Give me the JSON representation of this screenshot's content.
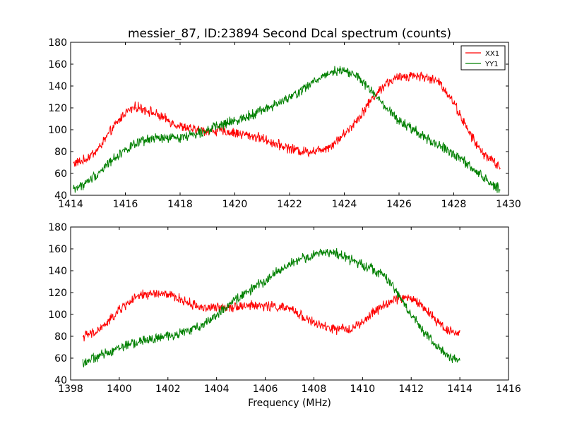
{
  "title": "messier_87, ID:23894 Second Dcal spectrum (counts)",
  "chart_data": [
    {
      "type": "line",
      "title": "messier_87, ID:23894 Second Dcal spectrum (counts)",
      "xlabel": "",
      "ylabel": "",
      "xlim": [
        1414,
        1430
      ],
      "ylim": [
        40,
        180
      ],
      "xticks": [
        "1414",
        "1416",
        "1418",
        "1420",
        "1422",
        "1424",
        "1426",
        "1428",
        "1430"
      ],
      "yticks": [
        "40",
        "60",
        "80",
        "100",
        "120",
        "140",
        "160",
        "180"
      ],
      "legend": {
        "placement": "top-right",
        "entries": [
          "XX1",
          "YY1"
        ]
      },
      "series": [
        {
          "name": "XX1",
          "color": "#ff0000",
          "x": [
            1414.1,
            1414.5,
            1415.0,
            1415.5,
            1416.0,
            1416.4,
            1416.8,
            1417.2,
            1417.6,
            1418.0,
            1418.5,
            1419.0,
            1419.5,
            1420.0,
            1420.5,
            1421.0,
            1421.5,
            1422.0,
            1422.5,
            1423.0,
            1423.5,
            1424.0,
            1424.5,
            1425.0,
            1425.5,
            1426.0,
            1426.5,
            1427.0,
            1427.5,
            1428.0,
            1428.5,
            1429.0,
            1429.5,
            1429.7
          ],
          "values": [
            69,
            72,
            82,
            100,
            116,
            121,
            118,
            113,
            108,
            103,
            100,
            99,
            99,
            97,
            95,
            92,
            87,
            83,
            80,
            81,
            85,
            96,
            110,
            128,
            142,
            148,
            150,
            148,
            143,
            125,
            100,
            80,
            70,
            65
          ]
        },
        {
          "name": "YY1",
          "color": "#008000",
          "x": [
            1414.1,
            1414.5,
            1415.0,
            1415.5,
            1416.0,
            1416.5,
            1417.0,
            1417.5,
            1418.0,
            1418.5,
            1419.0,
            1419.5,
            1420.0,
            1420.5,
            1421.0,
            1421.5,
            1422.0,
            1422.5,
            1423.0,
            1423.5,
            1424.0,
            1424.5,
            1425.0,
            1425.5,
            1426.0,
            1426.5,
            1427.0,
            1427.5,
            1428.0,
            1428.5,
            1429.0,
            1429.5,
            1429.7
          ],
          "values": [
            46,
            50,
            60,
            72,
            82,
            88,
            92,
            92,
            93,
            96,
            100,
            104,
            108,
            113,
            118,
            123,
            129,
            137,
            146,
            153,
            155,
            148,
            135,
            120,
            108,
            100,
            92,
            85,
            78,
            68,
            58,
            48,
            46
          ]
        }
      ]
    },
    {
      "type": "line",
      "title": "",
      "xlabel": "Frequency (MHz)",
      "ylabel": "",
      "xlim": [
        1398,
        1416
      ],
      "ylim": [
        40,
        180
      ],
      "xticks": [
        "1398",
        "1400",
        "1402",
        "1404",
        "1406",
        "1408",
        "1410",
        "1412",
        "1414",
        "1416"
      ],
      "yticks": [
        "40",
        "60",
        "80",
        "100",
        "120",
        "140",
        "160",
        "180"
      ],
      "series": [
        {
          "name": "XX1",
          "color": "#ff0000",
          "x": [
            1398.5,
            1399.0,
            1399.5,
            1400.0,
            1400.5,
            1401.0,
            1401.5,
            1402.0,
            1402.5,
            1403.0,
            1403.5,
            1404.0,
            1404.5,
            1405.0,
            1405.5,
            1406.0,
            1406.5,
            1407.0,
            1407.5,
            1408.0,
            1408.5,
            1409.0,
            1409.5,
            1410.0,
            1410.5,
            1411.0,
            1411.5,
            1412.0,
            1412.5,
            1413.0,
            1413.5,
            1414.0
          ],
          "values": [
            80,
            83,
            92,
            104,
            113,
            118,
            119,
            118,
            114,
            109,
            106,
            106,
            107,
            108,
            108,
            108,
            107,
            105,
            99,
            92,
            88,
            86,
            87,
            92,
            103,
            110,
            115,
            115,
            107,
            95,
            86,
            82
          ]
        },
        {
          "name": "YY1",
          "color": "#008000",
          "x": [
            1398.5,
            1399.0,
            1399.5,
            1400.0,
            1400.5,
            1401.0,
            1401.5,
            1402.0,
            1402.5,
            1403.0,
            1403.5,
            1404.0,
            1404.5,
            1405.0,
            1405.5,
            1406.0,
            1406.5,
            1407.0,
            1407.5,
            1408.0,
            1408.5,
            1409.0,
            1409.5,
            1410.0,
            1410.5,
            1411.0,
            1411.5,
            1412.0,
            1412.5,
            1413.0,
            1413.5,
            1414.0
          ],
          "values": [
            56,
            60,
            65,
            70,
            73,
            76,
            78,
            80,
            83,
            86,
            92,
            100,
            108,
            117,
            124,
            131,
            139,
            146,
            151,
            154,
            158,
            155,
            150,
            146,
            141,
            133,
            117,
            100,
            85,
            72,
            62,
            56
          ]
        }
      ]
    }
  ]
}
